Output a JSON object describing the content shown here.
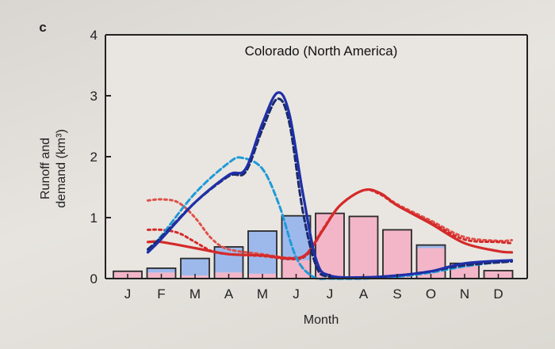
{
  "panel_label": "c",
  "chart_data": {
    "type": "bar",
    "title": "Colorado (North America)",
    "xlabel": "Month",
    "ylabel_line1": "Runoff and",
    "ylabel_line2": "demand (km³)",
    "ylim": [
      0,
      4
    ],
    "yticks": [
      0,
      1,
      2,
      3,
      4
    ],
    "categories": [
      "J",
      "F",
      "M",
      "A",
      "M",
      "J",
      "J",
      "A",
      "S",
      "O",
      "N",
      "D"
    ],
    "colors": {
      "blue_bar": "#9db9ec",
      "pink_bar": "#f2b6c8",
      "dark_blue": "#1f2fa8",
      "dark_blue_dashed": "#1a2a6a",
      "light_blue_dashed": "#1f9ad8",
      "red": "#d42a2a",
      "red_dotted": "#e0504a"
    },
    "bars": [
      {
        "month": "J",
        "pink": 0.12,
        "blue": 0.0
      },
      {
        "month": "F",
        "pink": 0.1,
        "blue": 0.07
      },
      {
        "month": "M",
        "pink": 0.05,
        "blue": 0.28
      },
      {
        "month": "A",
        "pink": 0.1,
        "blue": 0.42
      },
      {
        "month": "M",
        "pink": 0.08,
        "blue": 0.7
      },
      {
        "month": "J",
        "pink": 0.3,
        "blue": 0.73
      },
      {
        "month": "J",
        "pink": 1.07,
        "blue": 0.0
      },
      {
        "month": "A",
        "pink": 1.02,
        "blue": 0.0
      },
      {
        "month": "S",
        "pink": 0.8,
        "blue": 0.0
      },
      {
        "month": "O",
        "pink": 0.5,
        "blue": 0.05
      },
      {
        "month": "N",
        "pink": 0.25,
        "blue": 0.0
      },
      {
        "month": "D",
        "pink": 0.13,
        "blue": 0.0
      }
    ],
    "series": [
      {
        "style": "solid",
        "color": "#1f2fa8",
        "points": [
          [
            0.6,
            0.43
          ],
          [
            1,
            0.65
          ],
          [
            2,
            1.25
          ],
          [
            3,
            1.7
          ],
          [
            3.5,
            1.8
          ],
          [
            4,
            2.55
          ],
          [
            4.45,
            3.05
          ],
          [
            4.8,
            2.7
          ],
          [
            5.2,
            1.4
          ],
          [
            5.6,
            0.3
          ],
          [
            6,
            0.05
          ],
          [
            7,
            0.02
          ],
          [
            8,
            0.05
          ],
          [
            9,
            0.12
          ],
          [
            10,
            0.25
          ],
          [
            11.4,
            0.3
          ]
        ]
      },
      {
        "style": "dashed",
        "color": "#1a2a6a",
        "points": [
          [
            0.6,
            0.48
          ],
          [
            1,
            0.68
          ],
          [
            2,
            1.25
          ],
          [
            3,
            1.68
          ],
          [
            3.5,
            1.75
          ],
          [
            4,
            2.45
          ],
          [
            4.45,
            2.95
          ],
          [
            4.8,
            2.55
          ],
          [
            5.2,
            1.1
          ],
          [
            5.6,
            0.2
          ],
          [
            6,
            0.03
          ],
          [
            7,
            0.02
          ],
          [
            8,
            0.05
          ],
          [
            9,
            0.12
          ],
          [
            10,
            0.22
          ],
          [
            11.4,
            0.28
          ]
        ]
      },
      {
        "style": "dashed",
        "color": "#1f9ad8",
        "points": [
          [
            0.6,
            0.45
          ],
          [
            1,
            0.7
          ],
          [
            2,
            1.4
          ],
          [
            3,
            1.9
          ],
          [
            3.4,
            1.98
          ],
          [
            4,
            1.8
          ],
          [
            4.5,
            1.2
          ],
          [
            5,
            0.35
          ],
          [
            5.5,
            0.03
          ],
          [
            6,
            0.0
          ],
          [
            7,
            0.0
          ],
          [
            8,
            0.03
          ],
          [
            9,
            0.1
          ],
          [
            10,
            0.2
          ],
          [
            11.4,
            0.3
          ]
        ]
      },
      {
        "style": "solid",
        "color": "#d42a2a",
        "points": [
          [
            0.6,
            0.6
          ],
          [
            1,
            0.6
          ],
          [
            2,
            0.5
          ],
          [
            3,
            0.4
          ],
          [
            4,
            0.38
          ],
          [
            4.8,
            0.33
          ],
          [
            5.3,
            0.4
          ],
          [
            5.8,
            0.8
          ],
          [
            6.3,
            1.2
          ],
          [
            7,
            1.45
          ],
          [
            7.5,
            1.4
          ],
          [
            8,
            1.2
          ],
          [
            9,
            0.9
          ],
          [
            10,
            0.58
          ],
          [
            11,
            0.45
          ],
          [
            11.4,
            0.43
          ]
        ]
      },
      {
        "style": "dotted",
        "color": "#d42a2a",
        "points": [
          [
            0.6,
            0.8
          ],
          [
            1,
            0.8
          ],
          [
            1.5,
            0.75
          ],
          [
            2,
            0.6
          ],
          [
            2.5,
            0.45
          ],
          [
            3,
            0.4
          ],
          [
            4,
            0.37
          ],
          [
            4.8,
            0.32
          ],
          [
            5.3,
            0.38
          ],
          [
            5.8,
            0.8
          ],
          [
            6.3,
            1.2
          ],
          [
            7,
            1.45
          ],
          [
            7.5,
            1.38
          ],
          [
            8,
            1.2
          ],
          [
            9,
            0.92
          ],
          [
            10,
            0.64
          ],
          [
            11,
            0.6
          ],
          [
            11.4,
            0.58
          ]
        ]
      },
      {
        "style": "dotted",
        "color": "#e0504a",
        "points": [
          [
            0.6,
            1.28
          ],
          [
            1,
            1.3
          ],
          [
            1.5,
            1.25
          ],
          [
            2,
            1.0
          ],
          [
            2.5,
            0.65
          ],
          [
            3,
            0.48
          ],
          [
            4,
            0.4
          ],
          [
            4.8,
            0.34
          ],
          [
            5.3,
            0.4
          ],
          [
            5.8,
            0.82
          ],
          [
            6.3,
            1.2
          ],
          [
            7,
            1.45
          ],
          [
            7.5,
            1.4
          ],
          [
            8,
            1.22
          ],
          [
            9,
            0.95
          ],
          [
            10,
            0.68
          ],
          [
            11,
            0.62
          ],
          [
            11.4,
            0.63
          ]
        ]
      }
    ]
  }
}
